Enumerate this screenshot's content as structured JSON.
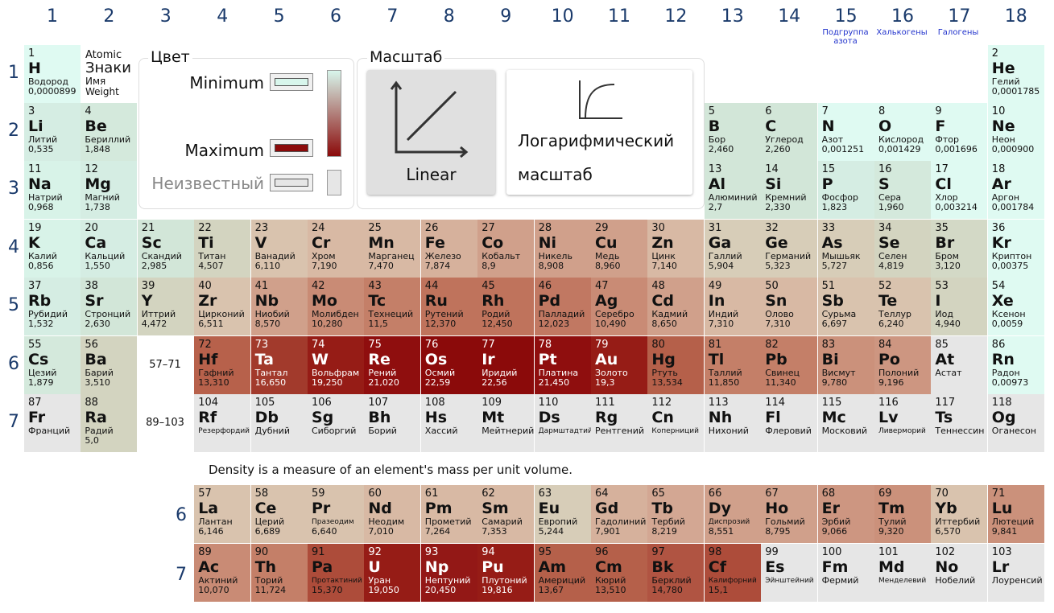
{
  "columns": [
    "1",
    "2",
    "3",
    "4",
    "5",
    "6",
    "7",
    "8",
    "9",
    "10",
    "11",
    "12",
    "13",
    "14",
    "15",
    "16",
    "17",
    "18"
  ],
  "group_names": {
    "15": "Подгруппа азота",
    "16": "Халькогены",
    "17": "Галогены"
  },
  "rows": [
    "1",
    "2",
    "3",
    "4",
    "5",
    "6",
    "7"
  ],
  "lanthanide_row_label": "6",
  "actinide_row_label": "7",
  "legend": {
    "number": "Atomic",
    "symbol": "Знаки",
    "name": "Имя",
    "weight": "Weight"
  },
  "color_panel": {
    "title": "Цвет",
    "minimum": "Minimum",
    "maximum": "Maximum",
    "unknown": "Неизвестный",
    "minimum_color": "#d8f6ec",
    "maximum_color": "#8b0a0a",
    "unknown_color": "#e6e6e6"
  },
  "scale_panel": {
    "title": "Масштаб",
    "linear": "Linear",
    "log_line1": "Логарифмический",
    "log_line2": "масштаб"
  },
  "ranges": {
    "lanthanides": "57–71",
    "actinides": "89–103"
  },
  "note": "Density is a measure of an element's mass per unit volume.",
  "elements": [
    {
      "n": "1",
      "s": "H",
      "name": "Водород",
      "d": "0,0000899",
      "c": "#dffaf2"
    },
    {
      "n": "2",
      "s": "He",
      "name": "Гелий",
      "d": "0,0001785",
      "c": "#dffaf2"
    },
    {
      "n": "3",
      "s": "Li",
      "name": "Литий",
      "d": "0,535",
      "c": "#d5ede3"
    },
    {
      "n": "4",
      "s": "Be",
      "name": "Бериллий",
      "d": "1,848",
      "c": "#d4e9dc"
    },
    {
      "n": "5",
      "s": "B",
      "name": "Бор",
      "d": "2,460",
      "c": "#d2e6d8"
    },
    {
      "n": "6",
      "s": "C",
      "name": "Углерод",
      "d": "2,260",
      "c": "#d2e6d8"
    },
    {
      "n": "7",
      "s": "N",
      "name": "Азот",
      "d": "0,001251",
      "c": "#dffaf2"
    },
    {
      "n": "8",
      "s": "O",
      "name": "Кислород",
      "d": "0,001429",
      "c": "#dffaf2"
    },
    {
      "n": "9",
      "s": "F",
      "name": "Фтор",
      "d": "0,001696",
      "c": "#dffaf2"
    },
    {
      "n": "10",
      "s": "Ne",
      "name": "Неон",
      "d": "0,000900",
      "c": "#dffaf2"
    },
    {
      "n": "11",
      "s": "Na",
      "name": "Натрий",
      "d": "0,968",
      "c": "#d8f3e8"
    },
    {
      "n": "12",
      "s": "Mg",
      "name": "Магний",
      "d": "1,738",
      "c": "#d5ede3"
    },
    {
      "n": "13",
      "s": "Al",
      "name": "Алюминий",
      "d": "2,7",
      "c": "#d2e6d8"
    },
    {
      "n": "14",
      "s": "Si",
      "name": "Кремний",
      "d": "2,330",
      "c": "#d2e6d8"
    },
    {
      "n": "15",
      "s": "P",
      "name": "Фосфор",
      "d": "1,823",
      "c": "#d5ede3"
    },
    {
      "n": "16",
      "s": "S",
      "name": "Сера",
      "d": "1,960",
      "c": "#d4e9dc"
    },
    {
      "n": "17",
      "s": "Cl",
      "name": "Хлор",
      "d": "0,003214",
      "c": "#dffaf2"
    },
    {
      "n": "18",
      "s": "Ar",
      "name": "Аргон",
      "d": "0,001784",
      "c": "#dffaf2"
    },
    {
      "n": "19",
      "s": "K",
      "name": "Калий",
      "d": "0,856",
      "c": "#d8f3e8"
    },
    {
      "n": "20",
      "s": "Ca",
      "name": "Кальций",
      "d": "1,550",
      "c": "#d5ede3"
    },
    {
      "n": "21",
      "s": "Sc",
      "name": "Скандий",
      "d": "2,985",
      "c": "#d2e6d8"
    },
    {
      "n": "22",
      "s": "Ti",
      "name": "Титан",
      "d": "4,507",
      "c": "#d3d4c0"
    },
    {
      "n": "23",
      "s": "V",
      "name": "Ванадий",
      "d": "6,110",
      "c": "#d9c3ae"
    },
    {
      "n": "24",
      "s": "Cr",
      "name": "Хром",
      "d": "7,190",
      "c": "#d8b9a4"
    },
    {
      "n": "25",
      "s": "Mn",
      "name": "Марганец",
      "d": "7,470",
      "c": "#d8b9a4"
    },
    {
      "n": "26",
      "s": "Fe",
      "name": "Железо",
      "d": "7,874",
      "c": "#d6b19c"
    },
    {
      "n": "27",
      "s": "Co",
      "name": "Кобальт",
      "d": "8,9",
      "c": "#d0a08b"
    },
    {
      "n": "28",
      "s": "Ni",
      "name": "Никель",
      "d": "8,908",
      "c": "#d0a08b"
    },
    {
      "n": "29",
      "s": "Cu",
      "name": "Медь",
      "d": "8,960",
      "c": "#d0a08b"
    },
    {
      "n": "30",
      "s": "Zn",
      "name": "Цинк",
      "d": "7,140",
      "c": "#d8b9a4"
    },
    {
      "n": "31",
      "s": "Ga",
      "name": "Галлий",
      "d": "5,904",
      "c": "#d7cdb8"
    },
    {
      "n": "32",
      "s": "Ge",
      "name": "Германий",
      "d": "5,323",
      "c": "#d7cdb8"
    },
    {
      "n": "33",
      "s": "As",
      "name": "Мышьяк",
      "d": "5,727",
      "c": "#d7cdb8"
    },
    {
      "n": "34",
      "s": "Se",
      "name": "Селен",
      "d": "4,819",
      "c": "#d3d4c0"
    },
    {
      "n": "35",
      "s": "Br",
      "name": "Бром",
      "d": "3,120",
      "c": "#d3d9c6"
    },
    {
      "n": "36",
      "s": "Kr",
      "name": "Криптон",
      "d": "0,00375",
      "c": "#dffaf2"
    },
    {
      "n": "37",
      "s": "Rb",
      "name": "Рубидий",
      "d": "1,532",
      "c": "#d5ede3"
    },
    {
      "n": "38",
      "s": "Sr",
      "name": "Стронций",
      "d": "2,630",
      "c": "#d2e6d8"
    },
    {
      "n": "39",
      "s": "Y",
      "name": "Иттрий",
      "d": "4,472",
      "c": "#d3d4c0"
    },
    {
      "n": "40",
      "s": "Zr",
      "name": "Цирконий",
      "d": "6,511",
      "c": "#d9c3ae"
    },
    {
      "n": "41",
      "s": "Nb",
      "name": "Ниобий",
      "d": "8,570",
      "c": "#d0a08b"
    },
    {
      "n": "42",
      "s": "Mo",
      "name": "Молибден",
      "d": "10,280",
      "c": "#c98b75"
    },
    {
      "n": "43",
      "s": "Tc",
      "name": "Технеций",
      "d": "11,5",
      "c": "#c47f68"
    },
    {
      "n": "44",
      "s": "Ru",
      "name": "Рутений",
      "d": "12,370",
      "c": "#bf735c"
    },
    {
      "n": "45",
      "s": "Rh",
      "name": "Родий",
      "d": "12,450",
      "c": "#bf735c"
    },
    {
      "n": "46",
      "s": "Pd",
      "name": "Палладий",
      "d": "12,023",
      "c": "#c17862"
    },
    {
      "n": "47",
      "s": "Ag",
      "name": "Серебро",
      "d": "10,490",
      "c": "#c98b75"
    },
    {
      "n": "48",
      "s": "Cd",
      "name": "Кадмий",
      "d": "8,650",
      "c": "#d0a08b"
    },
    {
      "n": "49",
      "s": "In",
      "name": "Индий",
      "d": "7,310",
      "c": "#d8b9a4"
    },
    {
      "n": "50",
      "s": "Sn",
      "name": "Олово",
      "d": "7,310",
      "c": "#d8b9a4"
    },
    {
      "n": "51",
      "s": "Sb",
      "name": "Сурьма",
      "d": "6,697",
      "c": "#d9c3ae"
    },
    {
      "n": "52",
      "s": "Te",
      "name": "Теллур",
      "d": "6,240",
      "c": "#d9c3ae"
    },
    {
      "n": "53",
      "s": "I",
      "name": "Иод",
      "d": "4,940",
      "c": "#d3d4c0"
    },
    {
      "n": "54",
      "s": "Xe",
      "name": "Ксенон",
      "d": "0,0059",
      "c": "#dffaf2"
    },
    {
      "n": "55",
      "s": "Cs",
      "name": "Цезий",
      "d": "1,879",
      "c": "#d4e9dc"
    },
    {
      "n": "56",
      "s": "Ba",
      "name": "Барий",
      "d": "3,510",
      "c": "#d3d4c0"
    },
    {
      "n": "72",
      "s": "Hf",
      "name": "Гафний",
      "d": "13,310",
      "c": "#b7614b"
    },
    {
      "n": "73",
      "s": "Ta",
      "name": "Тантал",
      "d": "16,650",
      "c": "#a23a2c",
      "dark": true
    },
    {
      "n": "74",
      "s": "W",
      "name": "Вольфрам",
      "d": "19,250",
      "c": "#961c16",
      "dark": true
    },
    {
      "n": "75",
      "s": "Re",
      "name": "Рений",
      "d": "21,020",
      "c": "#8f0e0e",
      "dark": true
    },
    {
      "n": "76",
      "s": "Os",
      "name": "Осмий",
      "d": "22,59",
      "c": "#8b0a0a",
      "dark": true
    },
    {
      "n": "77",
      "s": "Ir",
      "name": "Иридий",
      "d": "22,56",
      "c": "#8b0a0a",
      "dark": true
    },
    {
      "n": "78",
      "s": "Pt",
      "name": "Платина",
      "d": "21,450",
      "c": "#8f0e0e",
      "dark": true
    },
    {
      "n": "79",
      "s": "Au",
      "name": "Золото",
      "d": "19,3",
      "c": "#961c16",
      "dark": true
    },
    {
      "n": "80",
      "s": "Hg",
      "name": "Ртуть",
      "d": "13,534",
      "c": "#b5604a"
    },
    {
      "n": "81",
      "s": "Tl",
      "name": "Таллий",
      "d": "11,850",
      "c": "#c47f68"
    },
    {
      "n": "82",
      "s": "Pb",
      "name": "Свинец",
      "d": "11,340",
      "c": "#c47f68"
    },
    {
      "n": "83",
      "s": "Bi",
      "name": "Висмут",
      "d": "9,780",
      "c": "#cb917b"
    },
    {
      "n": "84",
      "s": "Po",
      "name": "Полоний",
      "d": "9,196",
      "c": "#cd9681"
    },
    {
      "n": "85",
      "s": "At",
      "name": "Астат",
      "d": "",
      "c": "#e6e6e6"
    },
    {
      "n": "86",
      "s": "Rn",
      "name": "Радон",
      "d": "0,00973",
      "c": "#dffaf2"
    },
    {
      "n": "87",
      "s": "Fr",
      "name": "Франций",
      "d": "",
      "c": "#e6e6e6"
    },
    {
      "n": "88",
      "s": "Ra",
      "name": "Радий",
      "d": "5,0",
      "c": "#d3d4c0"
    },
    {
      "n": "104",
      "s": "Rf",
      "name": "Резерфордий",
      "d": "",
      "c": "#e6e6e6",
      "small": true
    },
    {
      "n": "105",
      "s": "Db",
      "name": "Дубний",
      "d": "",
      "c": "#e6e6e6"
    },
    {
      "n": "106",
      "s": "Sg",
      "name": "Сиборгий",
      "d": "",
      "c": "#e6e6e6"
    },
    {
      "n": "107",
      "s": "Bh",
      "name": "Борий",
      "d": "",
      "c": "#e6e6e6"
    },
    {
      "n": "108",
      "s": "Hs",
      "name": "Хассий",
      "d": "",
      "c": "#e6e6e6"
    },
    {
      "n": "109",
      "s": "Mt",
      "name": "Мейтнерий",
      "d": "",
      "c": "#e6e6e6"
    },
    {
      "n": "110",
      "s": "Ds",
      "name": "Дармштадтий",
      "d": "",
      "c": "#e6e6e6",
      "small": true
    },
    {
      "n": "111",
      "s": "Rg",
      "name": "Рентгений",
      "d": "",
      "c": "#e6e6e6"
    },
    {
      "n": "112",
      "s": "Cn",
      "name": "Коперниций",
      "d": "",
      "c": "#e6e6e6",
      "small": true
    },
    {
      "n": "113",
      "s": "Nh",
      "name": "Нихоний",
      "d": "",
      "c": "#e6e6e6"
    },
    {
      "n": "114",
      "s": "Fl",
      "name": "Флеровий",
      "d": "",
      "c": "#e6e6e6"
    },
    {
      "n": "115",
      "s": "Mc",
      "name": "Московий",
      "d": "",
      "c": "#e6e6e6"
    },
    {
      "n": "116",
      "s": "Lv",
      "name": "Ливерморий",
      "d": "",
      "c": "#e6e6e6",
      "small": true
    },
    {
      "n": "117",
      "s": "Ts",
      "name": "Теннессин",
      "d": "",
      "c": "#e6e6e6"
    },
    {
      "n": "118",
      "s": "Og",
      "name": "Оганесон",
      "d": "",
      "c": "#e6e6e6"
    }
  ],
  "lanthanides": [
    {
      "n": "57",
      "s": "La",
      "name": "Лантан",
      "d": "6,146",
      "c": "#d9c3ae"
    },
    {
      "n": "58",
      "s": "Ce",
      "name": "Церий",
      "d": "6,689",
      "c": "#d9c3ae"
    },
    {
      "n": "59",
      "s": "Pr",
      "name": "Празеодим",
      "d": "6,640",
      "c": "#d9c3ae",
      "small": true
    },
    {
      "n": "60",
      "s": "Nd",
      "name": "Неодим",
      "d": "7,010",
      "c": "#d8b9a4"
    },
    {
      "n": "61",
      "s": "Pm",
      "name": "Прометий",
      "d": "7,264",
      "c": "#d8b9a4"
    },
    {
      "n": "62",
      "s": "Sm",
      "name": "Самарий",
      "d": "7,353",
      "c": "#d8b9a4"
    },
    {
      "n": "63",
      "s": "Eu",
      "name": "Европий",
      "d": "5,244",
      "c": "#d7cdb8"
    },
    {
      "n": "64",
      "s": "Gd",
      "name": "Гадолиний",
      "d": "7,901",
      "c": "#d6b19c"
    },
    {
      "n": "65",
      "s": "Tb",
      "name": "Тербий",
      "d": "8,219",
      "c": "#d3a793"
    },
    {
      "n": "66",
      "s": "Dy",
      "name": "Диспрозий",
      "d": "8,551",
      "c": "#d0a08b",
      "small": true
    },
    {
      "n": "67",
      "s": "Ho",
      "name": "Гольмий",
      "d": "8,795",
      "c": "#d0a08b"
    },
    {
      "n": "68",
      "s": "Er",
      "name": "Эрбий",
      "d": "9,066",
      "c": "#cd9681"
    },
    {
      "n": "69",
      "s": "Tm",
      "name": "Тулий",
      "d": "9,320",
      "c": "#cb917b"
    },
    {
      "n": "70",
      "s": "Yb",
      "name": "Иттербий",
      "d": "6,570",
      "c": "#d9c3ae"
    },
    {
      "n": "71",
      "s": "Lu",
      "name": "Лютеций",
      "d": "9,841",
      "c": "#cb917b"
    }
  ],
  "actinides": [
    {
      "n": "89",
      "s": "Ac",
      "name": "Актиний",
      "d": "10,070",
      "c": "#c98b75"
    },
    {
      "n": "90",
      "s": "Th",
      "name": "Торий",
      "d": "11,724",
      "c": "#c47f68"
    },
    {
      "n": "91",
      "s": "Pa",
      "name": "Протактиний",
      "d": "15,370",
      "c": "#ad4c3a",
      "small": true
    },
    {
      "n": "92",
      "s": "U",
      "name": "Уран",
      "d": "19,050",
      "c": "#961c16",
      "dark": true
    },
    {
      "n": "93",
      "s": "Np",
      "name": "Нептуний",
      "d": "20,450",
      "c": "#931816",
      "dark": true
    },
    {
      "n": "94",
      "s": "Pu",
      "name": "Плутоний",
      "d": "19,816",
      "c": "#961c16",
      "dark": true
    },
    {
      "n": "95",
      "s": "Am",
      "name": "Америций",
      "d": "13,67",
      "c": "#b5604a"
    },
    {
      "n": "96",
      "s": "Cm",
      "name": "Кюрий",
      "d": "13,510",
      "c": "#b5604a"
    },
    {
      "n": "97",
      "s": "Bk",
      "name": "Берклий",
      "d": "14,780",
      "c": "#b05442"
    },
    {
      "n": "98",
      "s": "Cf",
      "name": "Калифорний",
      "d": "15,1",
      "c": "#ad4c3a",
      "small": true
    },
    {
      "n": "99",
      "s": "Es",
      "name": "Эйнштейний",
      "d": "",
      "c": "#e6e6e6",
      "small": true
    },
    {
      "n": "100",
      "s": "Fm",
      "name": "Фермий",
      "d": "",
      "c": "#e6e6e6"
    },
    {
      "n": "101",
      "s": "Md",
      "name": "Менделевий",
      "d": "",
      "c": "#e6e6e6",
      "small": true
    },
    {
      "n": "102",
      "s": "No",
      "name": "Нобелий",
      "d": "",
      "c": "#e6e6e6"
    },
    {
      "n": "103",
      "s": "Lr",
      "name": "Лоуренсий",
      "d": "",
      "c": "#e6e6e6"
    }
  ]
}
